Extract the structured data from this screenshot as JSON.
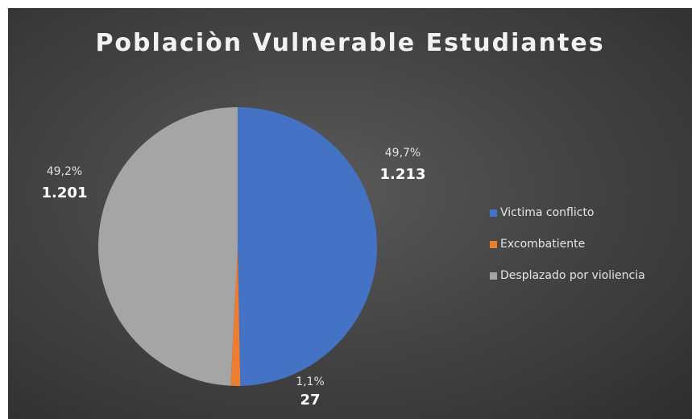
{
  "chart_data": {
    "type": "pie",
    "title": "Poblaciòn Vulnerable Estudiantes",
    "categories": [
      "Victima conflicto",
      "Excombatiente",
      "Desplazado por violiencia"
    ],
    "values": [
      1213,
      27,
      1201
    ],
    "value_labels": [
      "1.213",
      "27",
      "1.201"
    ],
    "percent_labels": [
      "49,7%",
      "1,1%",
      "49,2%"
    ],
    "colors": [
      "#4472c4",
      "#ed7d31",
      "#a5a5a5"
    ],
    "legend_position": "right"
  }
}
